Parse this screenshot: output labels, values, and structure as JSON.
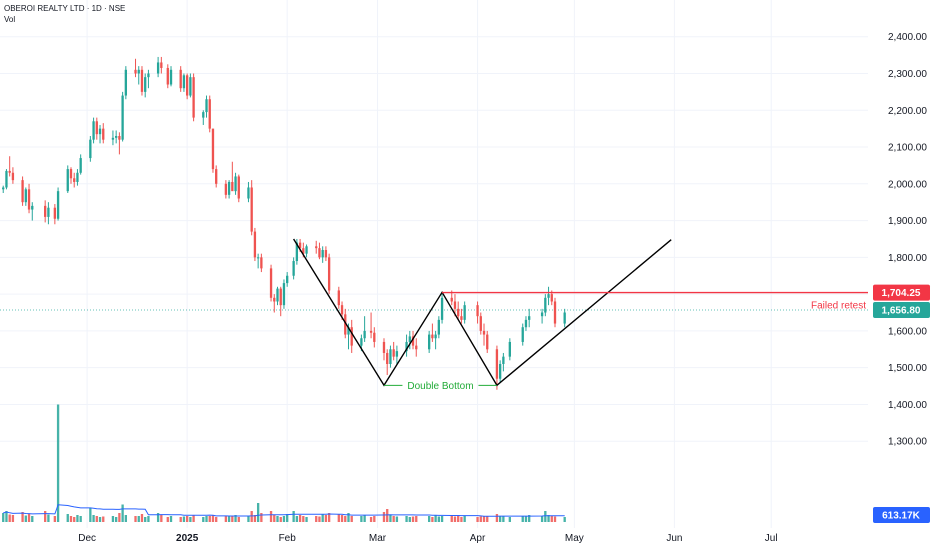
{
  "header": {
    "title": "OBEROI REALTY LTD · 1D · NSE",
    "vol_label": "Vol"
  },
  "colors": {
    "up": "#26a69a",
    "down": "#ef5350",
    "resistance": "#f23645",
    "annotation_green": "#22ab38",
    "volume_ma": "#2962ff",
    "grid": "#f0f3fa"
  },
  "chart_data": {
    "type": "candlestick",
    "symbol": "OBEROI REALTY LTD",
    "interval": "1D",
    "exchange": "NSE",
    "ylim": [
      1200,
      2440
    ],
    "y_ticks": [
      1300,
      1400,
      1500,
      1600,
      1700,
      1800,
      1900,
      2000,
      2100,
      2200,
      2300,
      2400
    ],
    "y_tick_labels": [
      "1,300.00",
      "1,400.00",
      "1,500.00",
      "1,600.00",
      "1,700.00",
      "1,800.00",
      "1,900.00",
      "2,000.00",
      "2,100.00",
      "2,200.00",
      "2,300.00",
      "2,400.00"
    ],
    "x_start": "2024-11-04",
    "x_end": "2025-07-31",
    "x_ticks": [
      {
        "date": "2024-12-01",
        "label": "Dec"
      },
      {
        "date": "2025-01-01",
        "label": "2025"
      },
      {
        "date": "2025-02-01",
        "label": "Feb"
      },
      {
        "date": "2025-03-01",
        "label": "Mar"
      },
      {
        "date": "2025-04-01",
        "label": "Apr"
      },
      {
        "date": "2025-05-01",
        "label": "May"
      },
      {
        "date": "2025-06-01",
        "label": "Jun"
      },
      {
        "date": "2025-07-01",
        "label": "Jul"
      }
    ],
    "candles": [
      [
        "2024-11-05",
        1985,
        1995,
        1975,
        1990
      ],
      [
        "2024-11-06",
        1990,
        2040,
        1985,
        2035
      ],
      [
        "2024-11-07",
        2035,
        2075,
        2020,
        2030
      ],
      [
        "2024-11-08",
        2030,
        2045,
        2000,
        2010
      ],
      [
        "2024-11-11",
        2010,
        2020,
        1940,
        1950
      ],
      [
        "2024-11-12",
        1950,
        1990,
        1940,
        1985
      ],
      [
        "2024-11-13",
        1985,
        2000,
        1920,
        1930
      ],
      [
        "2024-11-14",
        1930,
        1950,
        1900,
        1940
      ],
      [
        "2024-11-18",
        1940,
        1955,
        1895,
        1910
      ],
      [
        "2024-11-19",
        1910,
        1950,
        1890,
        1935
      ],
      [
        "2024-11-21",
        1935,
        1945,
        1890,
        1905
      ],
      [
        "2024-11-22",
        1905,
        1990,
        1900,
        1980
      ],
      [
        "2024-11-25",
        1980,
        2050,
        1975,
        2040
      ],
      [
        "2024-11-26",
        2040,
        2045,
        2000,
        2015
      ],
      [
        "2024-11-27",
        2015,
        2030,
        1990,
        2005
      ],
      [
        "2024-11-28",
        2005,
        2040,
        1995,
        2030
      ],
      [
        "2024-11-29",
        2030,
        2080,
        2025,
        2070
      ],
      [
        "2024-12-02",
        2070,
        2130,
        2060,
        2120
      ],
      [
        "2024-12-03",
        2120,
        2180,
        2110,
        2170
      ],
      [
        "2024-12-04",
        2170,
        2180,
        2120,
        2135
      ],
      [
        "2024-12-05",
        2135,
        2160,
        2110,
        2150
      ],
      [
        "2024-12-06",
        2150,
        2165,
        2110,
        2120
      ],
      [
        "2024-12-09",
        2120,
        2145,
        2105,
        2125
      ],
      [
        "2024-12-10",
        2125,
        2145,
        2110,
        2130
      ],
      [
        "2024-12-11",
        2130,
        2140,
        2080,
        2120
      ],
      [
        "2024-12-12",
        2120,
        2250,
        2115,
        2240
      ],
      [
        "2024-12-13",
        2240,
        2320,
        2230,
        2310
      ],
      [
        "2024-12-16",
        2310,
        2340,
        2290,
        2300
      ],
      [
        "2024-12-17",
        2300,
        2320,
        2270,
        2310
      ],
      [
        "2024-12-18",
        2310,
        2320,
        2240,
        2250
      ],
      [
        "2024-12-19",
        2250,
        2300,
        2235,
        2290
      ],
      [
        "2024-12-20",
        2290,
        2310,
        2260,
        2300
      ],
      [
        "2024-12-23",
        2300,
        2345,
        2290,
        2330
      ],
      [
        "2024-12-24",
        2330,
        2345,
        2300,
        2315
      ],
      [
        "2024-12-26",
        2315,
        2325,
        2260,
        2270
      ],
      [
        "2024-12-27",
        2270,
        2320,
        2265,
        2310
      ],
      [
        "2024-12-30",
        2310,
        2320,
        2250,
        2260
      ],
      [
        "2024-12-31",
        2260,
        2300,
        2250,
        2295
      ],
      [
        "2025-01-01",
        2295,
        2300,
        2230,
        2240
      ],
      [
        "2025-01-02",
        2240,
        2300,
        2235,
        2290
      ],
      [
        "2025-01-03",
        2290,
        2300,
        2170,
        2180
      ],
      [
        "2025-01-06",
        2180,
        2200,
        2160,
        2195
      ],
      [
        "2025-01-07",
        2195,
        2240,
        2180,
        2230
      ],
      [
        "2025-01-08",
        2230,
        2240,
        2140,
        2150
      ],
      [
        "2025-01-09",
        2150,
        2150,
        2030,
        2040
      ],
      [
        "2025-01-10",
        2040,
        2050,
        1990,
        2000
      ],
      [
        "2025-01-13",
        2000,
        2010,
        1960,
        1970
      ],
      [
        "2025-01-14",
        1970,
        2010,
        1960,
        2005
      ],
      [
        "2025-01-15",
        2005,
        2060,
        1990,
        1980
      ],
      [
        "2025-01-16",
        1980,
        2030,
        1970,
        2020
      ],
      [
        "2025-01-17",
        2020,
        2025,
        1950,
        1960
      ],
      [
        "2025-01-20",
        1960,
        2005,
        1950,
        1990
      ],
      [
        "2025-01-21",
        1990,
        2010,
        1860,
        1870
      ],
      [
        "2025-01-22",
        1870,
        1880,
        1790,
        1800
      ],
      [
        "2025-01-23",
        1800,
        1810,
        1770,
        1800
      ],
      [
        "2025-01-24",
        1800,
        1810,
        1760,
        1770
      ],
      [
        "2025-01-27",
        1770,
        1780,
        1680,
        1690
      ],
      [
        "2025-01-28",
        1690,
        1700,
        1650,
        1680
      ],
      [
        "2025-01-29",
        1680,
        1720,
        1670,
        1715
      ],
      [
        "2025-01-30",
        1715,
        1720,
        1640,
        1670
      ],
      [
        "2025-01-31",
        1670,
        1740,
        1660,
        1730
      ],
      [
        "2025-02-01",
        1730,
        1760,
        1720,
        1750
      ],
      [
        "2025-02-03",
        1750,
        1800,
        1740,
        1790
      ],
      [
        "2025-02-04",
        1790,
        1850,
        1780,
        1840
      ],
      [
        "2025-02-05",
        1840,
        1850,
        1815,
        1825
      ],
      [
        "2025-02-06",
        1825,
        1840,
        1800,
        1810
      ],
      [
        "2025-02-07",
        1810,
        1835,
        1800,
        1830
      ],
      [
        "2025-02-10",
        1830,
        1845,
        1810,
        1825
      ],
      [
        "2025-02-11",
        1825,
        1840,
        1795,
        1800
      ],
      [
        "2025-02-12",
        1800,
        1830,
        1785,
        1820
      ],
      [
        "2025-02-13",
        1820,
        1830,
        1790,
        1800
      ],
      [
        "2025-02-14",
        1800,
        1810,
        1700,
        1710
      ],
      [
        "2025-02-17",
        1710,
        1720,
        1660,
        1670
      ],
      [
        "2025-02-18",
        1670,
        1680,
        1630,
        1645
      ],
      [
        "2025-02-19",
        1645,
        1660,
        1580,
        1590
      ],
      [
        "2025-02-20",
        1590,
        1620,
        1550,
        1610
      ],
      [
        "2025-02-21",
        1610,
        1630,
        1540,
        1560
      ],
      [
        "2025-02-24",
        1560,
        1590,
        1545,
        1580
      ],
      [
        "2025-02-25",
        1580,
        1640,
        1570,
        1600
      ],
      [
        "2025-02-27",
        1600,
        1650,
        1580,
        1595
      ],
      [
        "2025-02-28",
        1595,
        1610,
        1555,
        1570
      ],
      [
        "2025-03-03",
        1570,
        1580,
        1520,
        1540
      ],
      [
        "2025-03-04",
        1540,
        1550,
        1480,
        1510
      ],
      [
        "2025-03-05",
        1510,
        1560,
        1500,
        1550
      ],
      [
        "2025-03-06",
        1550,
        1570,
        1520,
        1530
      ],
      [
        "2025-03-07",
        1530,
        1560,
        1510,
        1545
      ],
      [
        "2025-03-10",
        1545,
        1590,
        1530,
        1570
      ],
      [
        "2025-03-11",
        1570,
        1600,
        1550,
        1585
      ],
      [
        "2025-03-12",
        1585,
        1600,
        1550,
        1560
      ],
      [
        "2025-03-13",
        1560,
        1580,
        1530,
        1550
      ],
      [
        "2025-03-17",
        1550,
        1600,
        1540,
        1590
      ],
      [
        "2025-03-18",
        1590,
        1620,
        1570,
        1580
      ],
      [
        "2025-03-19",
        1580,
        1600,
        1550,
        1590
      ],
      [
        "2025-03-20",
        1590,
        1640,
        1580,
        1630
      ],
      [
        "2025-03-21",
        1630,
        1700,
        1620,
        1690
      ],
      [
        "2025-03-24",
        1690,
        1710,
        1670,
        1680
      ],
      [
        "2025-03-25",
        1680,
        1700,
        1640,
        1660
      ],
      [
        "2025-03-26",
        1660,
        1680,
        1630,
        1640
      ],
      [
        "2025-03-27",
        1640,
        1660,
        1620,
        1630
      ],
      [
        "2025-03-28",
        1630,
        1680,
        1620,
        1670
      ],
      [
        "2025-04-01",
        1670,
        1680,
        1620,
        1640
      ],
      [
        "2025-04-02",
        1640,
        1650,
        1590,
        1600
      ],
      [
        "2025-04-03",
        1600,
        1620,
        1560,
        1590
      ],
      [
        "2025-04-04",
        1590,
        1600,
        1540,
        1550
      ],
      [
        "2025-04-07",
        1550,
        1560,
        1440,
        1470
      ],
      [
        "2025-04-08",
        1470,
        1520,
        1460,
        1510
      ],
      [
        "2025-04-09",
        1510,
        1540,
        1490,
        1530
      ],
      [
        "2025-04-11",
        1530,
        1580,
        1520,
        1570
      ],
      [
        "2025-04-15",
        1570,
        1620,
        1560,
        1610
      ],
      [
        "2025-04-16",
        1610,
        1640,
        1600,
        1630
      ],
      [
        "2025-04-17",
        1630,
        1660,
        1610,
        1640
      ],
      [
        "2025-04-21",
        1640,
        1660,
        1620,
        1650
      ],
      [
        "2025-04-22",
        1650,
        1700,
        1640,
        1690
      ],
      [
        "2025-04-23",
        1690,
        1720,
        1670,
        1700
      ],
      [
        "2025-04-24",
        1700,
        1710,
        1670,
        1680
      ],
      [
        "2025-04-25",
        1680,
        1690,
        1610,
        1620
      ],
      [
        "2025-04-28",
        1620,
        1660,
        1610,
        1650
      ]
    ],
    "volume": {
      "ymax": 260,
      "values": [
        18,
        22,
        15,
        14,
        20,
        13,
        16,
        12,
        22,
        15,
        12,
        28,
        16,
        12,
        10,
        14,
        12,
        28,
        14,
        12,
        10,
        11,
        12,
        10,
        18,
        35,
        14,
        12,
        12,
        16,
        10,
        12,
        18,
        14,
        10,
        12,
        10,
        11,
        12,
        10,
        14,
        10,
        12,
        12,
        14,
        10,
        12,
        11,
        12,
        14,
        10,
        12,
        22,
        14,
        38,
        18,
        22,
        14,
        12,
        10,
        12,
        16,
        22,
        12,
        14,
        12,
        10,
        12,
        11,
        16,
        14,
        18,
        16,
        14,
        12,
        18,
        12,
        12,
        14,
        10,
        12,
        20,
        26,
        14,
        12,
        11,
        12,
        10,
        11,
        12,
        12,
        10,
        14,
        11,
        12,
        12,
        11,
        12,
        10,
        12,
        10,
        11,
        12,
        12,
        16,
        12,
        12,
        10,
        12,
        12,
        14,
        12,
        22,
        14,
        12,
        11
      ],
      "spike": {
        "date": "2024-11-22",
        "value": 235
      },
      "last_value_label": "613.17K"
    },
    "annotations": {
      "resistance": {
        "price": 1704.25,
        "from": "2025-03-21",
        "to": "2025-05-02",
        "label": "1,704.25",
        "note": "Failed retest"
      },
      "last_price": {
        "price": 1656.8,
        "label": "1,656.80"
      },
      "double_bottom_label": "Double Bottom",
      "pattern_path": [
        {
          "date": "2025-02-03",
          "price": 1850
        },
        {
          "date": "2025-03-03",
          "price": 1452
        },
        {
          "date": "2025-03-21",
          "price": 1705
        },
        {
          "date": "2025-04-07",
          "price": 1452
        },
        {
          "date": "2025-05-31",
          "price": 1848
        }
      ],
      "double_bottom_line": {
        "from": "2025-03-03",
        "to": "2025-04-07",
        "price": 1452
      }
    }
  }
}
